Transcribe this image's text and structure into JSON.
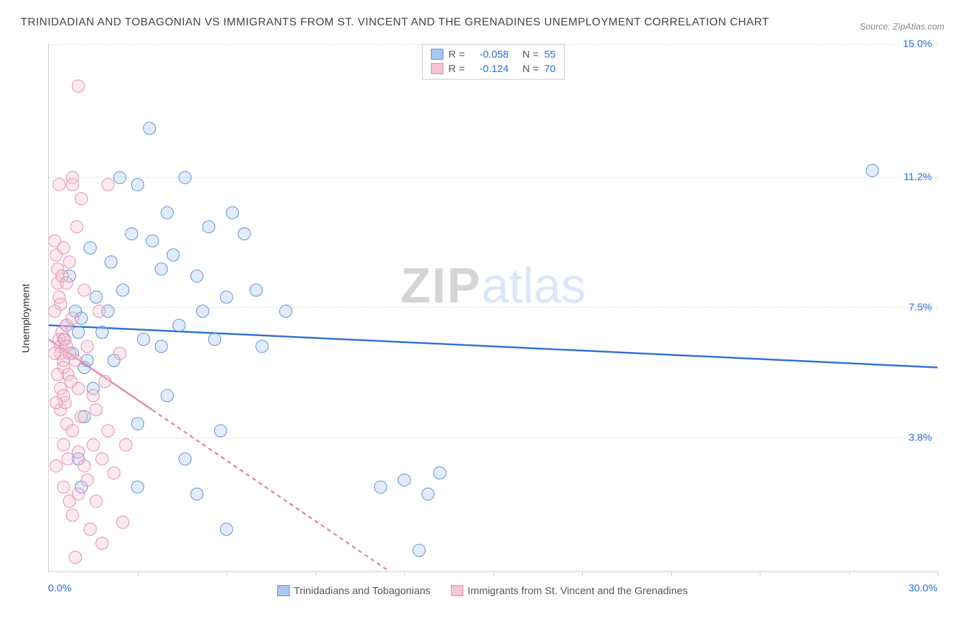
{
  "title": "TRINIDADIAN AND TOBAGONIAN VS IMMIGRANTS FROM ST. VINCENT AND THE GRENADINES UNEMPLOYMENT CORRELATION CHART",
  "source": "Source: ZipAtlas.com",
  "watermark": {
    "zip": "ZIP",
    "atlas": "atlas"
  },
  "chart": {
    "type": "scatter",
    "background_color": "#ffffff",
    "grid_color": "#dddddd",
    "axis_color": "#cccccc",
    "xlim": [
      0,
      30
    ],
    "ylim": [
      0,
      15
    ],
    "x_ticks": [
      3,
      6,
      9,
      12,
      15,
      18,
      21,
      24,
      27,
      30
    ],
    "y_gridlines": [
      3.8,
      7.5,
      11.2,
      15.0
    ],
    "y_tick_labels": [
      "3.8%",
      "7.5%",
      "11.2%",
      "15.0%"
    ],
    "y_tick_color": "#2b6fd6",
    "y_axis_title": "Unemployment",
    "x_axis_min_label": "0.0%",
    "x_axis_max_label": "30.0%",
    "x_label_color": "#2b6fd6",
    "marker_radius": 9,
    "marker_fill_opacity": 0.35,
    "line_width": 2.5
  },
  "legend_top": {
    "rows": [
      {
        "swatch_fill": "#a9c7ef",
        "swatch_border": "#5a8fd6",
        "r_label": "R =",
        "r_value": "-0.058",
        "n_label": "N =",
        "n_value": "55",
        "text_color": "#555555",
        "value_color": "#2b6fd6"
      },
      {
        "swatch_fill": "#f6c4d3",
        "swatch_border": "#e48aab",
        "r_label": "R =",
        "r_value": "-0.124",
        "n_label": "N =",
        "n_value": "70",
        "text_color": "#555555",
        "value_color": "#2b6fd6"
      }
    ]
  },
  "legend_bottom": {
    "items": [
      {
        "swatch_fill": "#a9c7ef",
        "swatch_border": "#5a8fd6",
        "label": "Trinidadians and Tobagonians"
      },
      {
        "swatch_fill": "#f6c4d3",
        "swatch_border": "#e48aab",
        "label": "Immigrants from St. Vincent and the Grenadines"
      }
    ]
  },
  "series": [
    {
      "name": "Trinidadians and Tobagonians",
      "color_fill": "#a9c7ef",
      "color_stroke": "#5a8fd6",
      "regression": {
        "x1": 0,
        "y1": 7.0,
        "x2": 30,
        "y2": 5.8,
        "color": "#2b6fd6",
        "dash": "none"
      },
      "points": [
        [
          0.5,
          6.6
        ],
        [
          0.6,
          7.0
        ],
        [
          0.8,
          6.2
        ],
        [
          0.9,
          7.4
        ],
        [
          1.0,
          6.8
        ],
        [
          1.1,
          7.2
        ],
        [
          1.2,
          5.8
        ],
        [
          1.3,
          6.0
        ],
        [
          1.0,
          3.2
        ],
        [
          1.1,
          2.4
        ],
        [
          1.2,
          4.4
        ],
        [
          1.5,
          5.2
        ],
        [
          1.8,
          6.8
        ],
        [
          2.0,
          7.4
        ],
        [
          2.1,
          8.8
        ],
        [
          2.4,
          11.2
        ],
        [
          2.8,
          9.6
        ],
        [
          3.0,
          11.0
        ],
        [
          3.0,
          4.2
        ],
        [
          3.0,
          2.4
        ],
        [
          3.2,
          6.6
        ],
        [
          3.4,
          12.6
        ],
        [
          3.5,
          9.4
        ],
        [
          3.8,
          6.4
        ],
        [
          3.8,
          8.6
        ],
        [
          4.0,
          10.2
        ],
        [
          4.0,
          5.0
        ],
        [
          4.2,
          9.0
        ],
        [
          4.4,
          7.0
        ],
        [
          4.6,
          3.2
        ],
        [
          4.6,
          11.2
        ],
        [
          5.0,
          8.4
        ],
        [
          5.0,
          2.2
        ],
        [
          5.2,
          7.4
        ],
        [
          5.4,
          9.8
        ],
        [
          5.6,
          6.6
        ],
        [
          5.8,
          4.0
        ],
        [
          6.0,
          7.8
        ],
        [
          6.0,
          1.2
        ],
        [
          6.2,
          10.2
        ],
        [
          6.6,
          9.6
        ],
        [
          7.0,
          8.0
        ],
        [
          7.2,
          6.4
        ],
        [
          8.0,
          7.4
        ],
        [
          11.2,
          2.4
        ],
        [
          12.0,
          2.6
        ],
        [
          12.5,
          0.6
        ],
        [
          12.8,
          2.2
        ],
        [
          13.2,
          2.8
        ],
        [
          27.8,
          11.4
        ],
        [
          1.6,
          7.8
        ],
        [
          2.2,
          6.0
        ],
        [
          2.5,
          8.0
        ],
        [
          1.4,
          9.2
        ],
        [
          0.7,
          8.4
        ]
      ]
    },
    {
      "name": "Immigrants from St. Vincent and the Grenadines",
      "color_fill": "#f6c4d3",
      "color_stroke": "#e48aab",
      "regression": {
        "x1": 0,
        "y1": 6.6,
        "x2": 11.5,
        "y2": 0,
        "color": "#e48aab",
        "dash": "6 5",
        "solid_until": 3.5
      },
      "points": [
        [
          0.2,
          9.4
        ],
        [
          0.25,
          9.0
        ],
        [
          0.3,
          8.6
        ],
        [
          0.3,
          8.2
        ],
        [
          0.35,
          7.8
        ],
        [
          0.35,
          6.6
        ],
        [
          0.4,
          6.4
        ],
        [
          0.4,
          6.2
        ],
        [
          0.4,
          7.6
        ],
        [
          0.4,
          5.2
        ],
        [
          0.4,
          4.6
        ],
        [
          0.45,
          6.8
        ],
        [
          0.5,
          6.0
        ],
        [
          0.5,
          5.8
        ],
        [
          0.5,
          5.0
        ],
        [
          0.5,
          3.6
        ],
        [
          0.5,
          2.4
        ],
        [
          0.55,
          6.6
        ],
        [
          0.55,
          4.8
        ],
        [
          0.6,
          7.0
        ],
        [
          0.6,
          6.4
        ],
        [
          0.6,
          4.2
        ],
        [
          0.65,
          5.6
        ],
        [
          0.65,
          3.2
        ],
        [
          0.7,
          8.8
        ],
        [
          0.7,
          6.2
        ],
        [
          0.7,
          2.0
        ],
        [
          0.75,
          5.4
        ],
        [
          0.8,
          11.2
        ],
        [
          0.8,
          11.0
        ],
        [
          0.8,
          7.2
        ],
        [
          0.8,
          4.0
        ],
        [
          0.8,
          1.6
        ],
        [
          0.9,
          6.0
        ],
        [
          0.9,
          0.4
        ],
        [
          0.95,
          9.8
        ],
        [
          1.0,
          13.8
        ],
        [
          1.0,
          5.2
        ],
        [
          1.0,
          3.4
        ],
        [
          1.0,
          2.2
        ],
        [
          1.1,
          10.6
        ],
        [
          1.1,
          4.4
        ],
        [
          1.2,
          8.0
        ],
        [
          1.2,
          3.0
        ],
        [
          1.3,
          6.4
        ],
        [
          1.3,
          2.6
        ],
        [
          1.4,
          1.2
        ],
        [
          1.5,
          5.0
        ],
        [
          1.5,
          3.6
        ],
        [
          1.6,
          4.6
        ],
        [
          1.6,
          2.0
        ],
        [
          1.7,
          7.4
        ],
        [
          1.8,
          0.8
        ],
        [
          1.8,
          3.2
        ],
        [
          1.9,
          5.4
        ],
        [
          2.0,
          4.0
        ],
        [
          2.0,
          11.0
        ],
        [
          2.2,
          2.8
        ],
        [
          2.4,
          6.2
        ],
        [
          2.5,
          1.4
        ],
        [
          2.6,
          3.6
        ],
        [
          0.35,
          11.0
        ],
        [
          0.5,
          9.2
        ],
        [
          0.45,
          8.4
        ],
        [
          0.6,
          8.2
        ],
        [
          0.3,
          5.6
        ],
        [
          0.25,
          4.8
        ],
        [
          0.2,
          6.2
        ],
        [
          0.2,
          7.4
        ],
        [
          0.25,
          3.0
        ]
      ]
    }
  ]
}
